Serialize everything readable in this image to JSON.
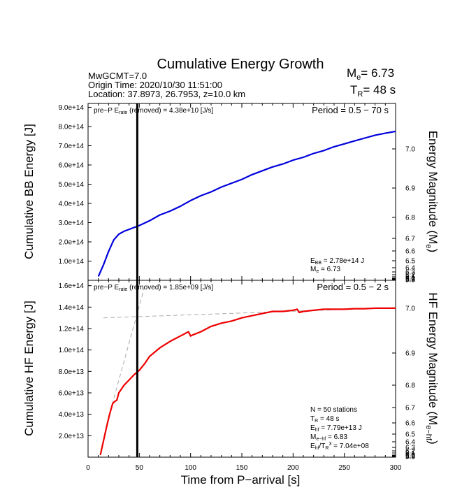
{
  "chart_data": {
    "type": "line",
    "title": "Cumulative Energy Growth",
    "header": {
      "event": "MwGCMT=7.0",
      "origin_time": "Origin Time: 2020/10/30 11:51:00",
      "location": "Location: 37.8973, 26.7953, z=10.0 km",
      "me_value": "= 6.73",
      "tr_value": "= 48 s"
    },
    "xlabel": "Time from P−arrival [s]",
    "xlim": [
      0,
      300
    ],
    "xticks": [
      "0",
      "50",
      "100",
      "150",
      "200",
      "250",
      "300"
    ],
    "xtick_values": [
      0,
      50,
      100,
      150,
      200,
      250,
      300
    ],
    "p_arrival_marker_x": 48,
    "panels": [
      {
        "name": "bb",
        "ylabel": "Cumulative BB Energy [J]",
        "ylabel2": "Energy Magnitude (M",
        "ylabel2_sub": "e",
        "ylim": [
          0,
          920000000000000.0
        ],
        "yticks": [
          100000000000000.0,
          200000000000000.0,
          300000000000000.0,
          400000000000000.0,
          500000000000000.0,
          600000000000000.0,
          700000000000000.0,
          800000000000000.0,
          900000000000000.0
        ],
        "yticklabels": [
          "1.0e+14",
          "2.0e+14",
          "3.0e+14",
          "4.0e+14",
          "5.0e+14",
          "6.0e+14",
          "7.0e+14",
          "8.0e+14",
          "9.0e+14"
        ],
        "y2ticks": [
          "7.0",
          "6.9",
          "6.8",
          "6.7",
          "6.6",
          "6.5",
          "6.4",
          "6.3",
          "6.2",
          "6.1",
          "6.0",
          "5.9",
          "5.8"
        ],
        "pre_p_note": "pre−P E",
        "pre_p_sub": "rate",
        "pre_p_value": " (removed) = 4.38e+10 [J/s]",
        "period": "Period = 0.5 − 70 s",
        "stats": [
          {
            "label": "E",
            "sub": "BB",
            "value": " = 2.78e+14 J"
          },
          {
            "label": "M",
            "sub": "e",
            "value": " = 6.73"
          }
        ],
        "series": [
          {
            "color": "#0000dd",
            "x": [
              10,
              15,
              20,
              25,
              30,
              35,
              40,
              45,
              50,
              60,
              70,
              80,
              90,
              100,
              110,
              120,
              130,
              140,
              150,
              160,
              170,
              180,
              190,
              200,
              210,
              220,
              230,
              240,
              250,
              260,
              270,
              280,
              290,
              300
            ],
            "y": [
              20000000000000.0,
              80000000000000.0,
              150000000000000.0,
              210000000000000.0,
              240000000000000.0,
              255000000000000.0,
              265000000000000.0,
              275000000000000.0,
              285000000000000.0,
              310000000000000.0,
              340000000000000.0,
              360000000000000.0,
              385000000000000.0,
              415000000000000.0,
              440000000000000.0,
              460000000000000.0,
              485000000000000.0,
              505000000000000.0,
              525000000000000.0,
              550000000000000.0,
              570000000000000.0,
              590000000000000.0,
              605000000000000.0,
              625000000000000.0,
              640000000000000.0,
              660000000000000.0,
              675000000000000.0,
              695000000000000.0,
              710000000000000.0,
              725000000000000.0,
              740000000000000.0,
              755000000000000.0,
              765000000000000.0,
              775000000000000.0
            ]
          }
        ]
      },
      {
        "name": "hf",
        "ylabel": "Cumulative HF Energy [J]",
        "ylabel2": "HF Energy Magnitude (M",
        "ylabel2_sub": "e−hf",
        "ylim": [
          0,
          165000000000000.0
        ],
        "yticks": [
          20000000000000.0,
          40000000000000.0,
          60000000000000.0,
          80000000000000.0,
          100000000000000.0,
          120000000000000.0,
          140000000000000.0,
          160000000000000.0
        ],
        "yticklabels": [
          "2.0e+13",
          "4.0e+13",
          "6.0e+13",
          "8.0e+13",
          "1.0e+14",
          "1.2e+14",
          "1.4e+14",
          "1.6e+14"
        ],
        "y2ticks": [
          "7.0",
          "6.9",
          "6.8",
          "6.7",
          "6.6",
          "6.5",
          "6.4",
          "6.3",
          "6.2",
          "6.1",
          "6.0",
          "5.9",
          "5.8"
        ],
        "pre_p_note": "pre−P E",
        "pre_p_sub": "rate",
        "pre_p_value": " (removed) = 1.85e+09 [J/s]",
        "period": "Period = 0.5 − 2 s",
        "stats": [
          {
            "label": "N = 50 stations",
            "sub": "",
            "value": ""
          },
          {
            "label": "T",
            "sub": "R",
            "value": " = 48  s"
          },
          {
            "label": "E",
            "sub": "hf",
            "value": " = 7.79e+13 J"
          },
          {
            "label": "M",
            "sub": "e−hf",
            "value": " = 6.83"
          },
          {
            "label": "E",
            "sub": "hf",
            "value": "/T",
            "sub2": "R",
            "value2": "3",
            "value3": " =  7.04e+08"
          }
        ],
        "series": [
          {
            "color": "#ee0000",
            "x": [
              12,
              15,
              18,
              21,
              24,
              26,
              28,
              30,
              35,
              40,
              45,
              50,
              55,
              60,
              70,
              80,
              90,
              98,
              100,
              102,
              110,
              120,
              130,
              140,
              150,
              160,
              170,
              180,
              190,
              200,
              204,
              206,
              210,
              220,
              230,
              240,
              250,
              260,
              270,
              280,
              290,
              300
            ],
            "y": [
              2000000000000.0,
              15000000000000.0,
              28000000000000.0,
              40000000000000.0,
              50000000000000.0,
              52000000000000.0,
              53000000000000.0,
              60000000000000.0,
              67000000000000.0,
              72000000000000.0,
              77000000000000.0,
              81000000000000.0,
              87000000000000.0,
              94000000000000.0,
              102000000000000.0,
              108000000000000.0,
              113000000000000.0,
              117000000000000.0,
              113000000000000.0,
              114000000000000.0,
              117000000000000.0,
              122000000000000.0,
              125000000000000.0,
              127000000000000.0,
              130000000000000.0,
              132000000000000.0,
              134000000000000.0,
              136000000000000.0,
              136000000000000.0,
              137000000000000.0,
              138000000000000.0,
              135000000000000.0,
              136000000000000.0,
              137000000000000.0,
              138000000000000.0,
              138000000000000.0,
              138000000000000.0,
              138500000000000.0,
              138500000000000.0,
              139000000000000.0,
              139000000000000.0,
              139000000000000.0
            ]
          }
        ],
        "guides": [
          {
            "x": [
              15,
              300
            ],
            "y": [
              130000000000000.0,
              139500000000000.0
            ]
          },
          {
            "x": [
              18,
              56
            ],
            "y": [
              30000000000000.0,
              162000000000000.0
            ]
          }
        ]
      }
    ]
  }
}
